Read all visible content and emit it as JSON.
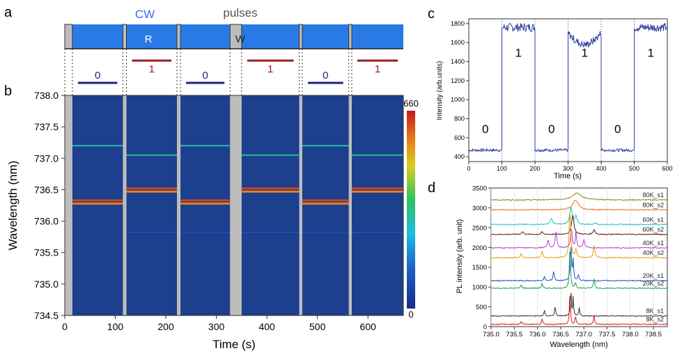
{
  "panels": {
    "a": {
      "label": "a",
      "cw_label": "CW",
      "pulses_label": "pulses",
      "read_label": "R",
      "write_label": "W",
      "bits": [
        "0",
        "1",
        "0",
        "1",
        "0",
        "1"
      ]
    },
    "b": {
      "label": "b"
    },
    "c": {
      "label": "c"
    },
    "d": {
      "label": "d"
    }
  },
  "colors": {
    "cw_blue": "#2a7ae6",
    "pulse_gray": "#bdbdbd",
    "bit0": "#1a237e",
    "bit1": "#9b1a1a",
    "map_bg": "#1c3f8e",
    "line_blue": "#2b3f9e"
  },
  "chart_data": [
    {
      "panel": "b",
      "type": "heatmap",
      "xlabel": "Time (s)",
      "ylabel": "Wavelength (nm)",
      "xlim": [
        0,
        670
      ],
      "ylim": [
        734.5,
        738.0
      ],
      "xticks": [
        "0",
        "100",
        "200",
        "300",
        "400",
        "500",
        "600"
      ],
      "yticks": [
        "734.5",
        "735.0",
        "735.5",
        "736.0",
        "736.5",
        "737.0",
        "737.5",
        "738.0"
      ],
      "colorbar": {
        "min": 0,
        "max": 660,
        "min_label": "0",
        "max_label": "660"
      },
      "pulse_intervals": [
        [
          0,
          15
        ],
        [
          115,
          122
        ],
        [
          222,
          229
        ],
        [
          327,
          350
        ],
        [
          464,
          470
        ],
        [
          562,
          568
        ]
      ],
      "segments": [
        {
          "t": [
            15,
            115
          ],
          "state": "0",
          "lines": [
            {
              "wl": 737.2,
              "i": 300
            },
            {
              "wl": 736.33,
              "i": 620
            },
            {
              "wl": 736.28,
              "i": 560
            }
          ]
        },
        {
          "t": [
            122,
            222
          ],
          "state": "1",
          "lines": [
            {
              "wl": 737.05,
              "i": 320
            },
            {
              "wl": 736.52,
              "i": 620
            },
            {
              "wl": 736.47,
              "i": 560
            },
            {
              "wl": 735.82,
              "i": 130
            }
          ]
        },
        {
          "t": [
            229,
            327
          ],
          "state": "0",
          "lines": [
            {
              "wl": 737.2,
              "i": 300
            },
            {
              "wl": 736.33,
              "i": 620
            },
            {
              "wl": 736.28,
              "i": 560
            },
            {
              "wl": 735.82,
              "i": 110
            }
          ]
        },
        {
          "t": [
            350,
            464
          ],
          "state": "1",
          "lines": [
            {
              "wl": 737.05,
              "i": 320
            },
            {
              "wl": 736.52,
              "i": 620
            },
            {
              "wl": 736.47,
              "i": 560
            },
            {
              "wl": 735.82,
              "i": 130
            }
          ]
        },
        {
          "t": [
            470,
            562
          ],
          "state": "0",
          "lines": [
            {
              "wl": 737.2,
              "i": 300
            },
            {
              "wl": 736.33,
              "i": 620
            },
            {
              "wl": 736.28,
              "i": 560
            },
            {
              "wl": 735.82,
              "i": 110
            }
          ]
        },
        {
          "t": [
            568,
            670
          ],
          "state": "1",
          "lines": [
            {
              "wl": 737.05,
              "i": 320
            },
            {
              "wl": 736.52,
              "i": 620
            },
            {
              "wl": 736.47,
              "i": 560
            },
            {
              "wl": 735.82,
              "i": 130
            }
          ]
        }
      ]
    },
    {
      "panel": "c",
      "type": "line",
      "xlabel": "Time (s)",
      "ylabel": "Intensity (arb.units)",
      "xlim": [
        0,
        600
      ],
      "ylim": [
        350,
        1850
      ],
      "xticks": [
        "0",
        "100",
        "200",
        "300",
        "400",
        "500",
        "600"
      ],
      "yticks": [
        "400",
        "600",
        "800",
        "1000",
        "1200",
        "1400",
        "1600",
        "1800"
      ],
      "levels": [
        {
          "t": [
            0,
            100
          ],
          "value": 470,
          "label": "0"
        },
        {
          "t": [
            100,
            200
          ],
          "value": 1760,
          "label": "1"
        },
        {
          "t": [
            200,
            300
          ],
          "value": 470,
          "label": "0"
        },
        {
          "t": [
            300,
            400
          ],
          "value": 1700,
          "label": "1"
        },
        {
          "t": [
            400,
            500
          ],
          "value": 470,
          "label": "0"
        },
        {
          "t": [
            500,
            600
          ],
          "value": 1760,
          "label": "1"
        }
      ],
      "transitions": [
        100,
        200,
        300,
        400,
        500
      ]
    },
    {
      "panel": "d",
      "type": "line",
      "xlabel": "Wavelength (nm)",
      "ylabel": "PL intensity (arb. unit)",
      "xlim": [
        735.0,
        738.8
      ],
      "ylim": [
        0,
        3500
      ],
      "xticks": [
        "735.0",
        "735.5",
        "736.0",
        "736.5",
        "737.0",
        "737.5",
        "738.0",
        "738.5"
      ],
      "yticks": [
        "0",
        "500",
        "1000",
        "1500",
        "2000",
        "2500",
        "3000",
        "3500"
      ],
      "series": [
        {
          "name": "80K_s1",
          "color": "#7d8a1c",
          "offset": 3200,
          "peaks": [
            [
              736.85,
              170,
              0.12
            ]
          ]
        },
        {
          "name": "80K_s2",
          "color": "#e8701a",
          "offset": 2950,
          "peaks": [
            [
              736.82,
              250,
              0.07
            ]
          ]
        },
        {
          "name": "60K_s1",
          "color": "#1cc0c0",
          "offset": 2580,
          "peaks": [
            [
              736.3,
              150,
              0.03
            ],
            [
              736.72,
              450,
              0.03
            ],
            [
              736.83,
              200,
              0.025
            ],
            [
              737.25,
              50,
              0.02
            ]
          ]
        },
        {
          "name": "60K_s2",
          "color": "#5a1a1a",
          "offset": 2330,
          "peaks": [
            [
              735.68,
              70,
              0.025
            ],
            [
              736.1,
              60,
              0.02
            ],
            [
              736.76,
              500,
              0.03
            ],
            [
              737.22,
              120,
              0.025
            ]
          ]
        },
        {
          "name": "40K_s1",
          "color": "#b040d0",
          "offset": 1990,
          "peaks": [
            [
              736.23,
              180,
              0.02
            ],
            [
              736.4,
              410,
              0.02
            ],
            [
              736.73,
              500,
              0.02
            ],
            [
              736.83,
              400,
              0.015
            ],
            [
              737.0,
              200,
              0.02
            ]
          ]
        },
        {
          "name": "40K_s2",
          "color": "#e0a010",
          "offset": 1740,
          "peaks": [
            [
              735.65,
              100,
              0.02
            ],
            [
              736.1,
              150,
              0.02
            ],
            [
              736.7,
              1200,
              0.02
            ],
            [
              736.83,
              200,
              0.02
            ],
            [
              737.22,
              300,
              0.02
            ]
          ]
        },
        {
          "name": "20K_s1",
          "color": "#1a4fd0",
          "offset": 1160,
          "peaks": [
            [
              736.15,
              100,
              0.015
            ],
            [
              736.35,
              250,
              0.015
            ],
            [
              736.72,
              900,
              0.015
            ],
            [
              736.77,
              500,
              0.012
            ],
            [
              736.88,
              150,
              0.015
            ]
          ]
        },
        {
          "name": "20K_s2",
          "color": "#1ca050",
          "offset": 970,
          "peaks": [
            [
              735.65,
              90,
              0.015
            ],
            [
              736.1,
              120,
              0.015
            ],
            [
              736.7,
              1000,
              0.015
            ],
            [
              736.82,
              150,
              0.015
            ],
            [
              737.22,
              250,
              0.015
            ]
          ]
        },
        {
          "name": "8K_s1",
          "color": "#303030",
          "offset": 270,
          "peaks": [
            [
              736.15,
              140,
              0.012
            ],
            [
              736.38,
              260,
              0.012
            ],
            [
              736.72,
              650,
              0.012
            ],
            [
              736.77,
              460,
              0.01
            ],
            [
              736.9,
              200,
              0.012
            ]
          ]
        },
        {
          "name": "8K_s2",
          "color": "#e01818",
          "offset": 60,
          "peaks": [
            [
              735.65,
              90,
              0.012
            ],
            [
              736.1,
              140,
              0.012
            ],
            [
              736.7,
              800,
              0.012
            ],
            [
              736.82,
              220,
              0.012
            ],
            [
              737.22,
              240,
              0.012
            ]
          ]
        }
      ]
    }
  ]
}
